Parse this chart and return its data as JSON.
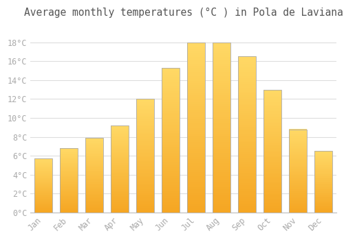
{
  "months": [
    "Jan",
    "Feb",
    "Mar",
    "Apr",
    "May",
    "Jun",
    "Jul",
    "Aug",
    "Sep",
    "Oct",
    "Nov",
    "Dec"
  ],
  "values": [
    5.7,
    6.8,
    7.9,
    9.2,
    12.0,
    15.3,
    18.0,
    18.0,
    16.5,
    13.0,
    8.8,
    6.5
  ],
  "title": "Average monthly temperatures (°C ) in Pola de Laviana",
  "background_color": "#FFFFFF",
  "grid_color": "#DDDDDD",
  "bar_color_bottom": "#F5A623",
  "bar_color_top": "#FFD966",
  "bar_edge_color": "#AAAAAA",
  "ylim": [
    0,
    20
  ],
  "yticks": [
    0,
    2,
    4,
    6,
    8,
    10,
    12,
    14,
    16,
    18
  ],
  "ytick_labels": [
    "0°C",
    "2°C",
    "4°C",
    "6°C",
    "8°C",
    "10°C",
    "12°C",
    "14°C",
    "16°C",
    "18°C"
  ],
  "tick_color": "#AAAAAA",
  "title_color": "#555555",
  "title_fontsize": 10.5,
  "axis_fontsize": 8.5,
  "bar_width": 0.7
}
